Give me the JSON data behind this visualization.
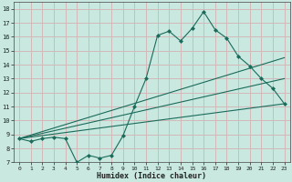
{
  "xlabel": "Humidex (Indice chaleur)",
  "xlim": [
    -0.5,
    23.5
  ],
  "ylim": [
    7,
    18.5
  ],
  "yticks": [
    7,
    8,
    9,
    10,
    11,
    12,
    13,
    14,
    15,
    16,
    17,
    18
  ],
  "xticks": [
    0,
    1,
    2,
    3,
    4,
    5,
    6,
    7,
    8,
    9,
    10,
    11,
    12,
    13,
    14,
    15,
    16,
    17,
    18,
    19,
    20,
    21,
    22,
    23
  ],
  "background_color": "#c8e8e0",
  "grid_color": "#d4b8b8",
  "line_color": "#1a6b5a",
  "lines": [
    {
      "x": [
        0,
        1,
        2,
        3,
        4,
        5,
        6,
        7,
        8,
        9,
        10,
        11,
        12,
        13,
        14,
        15,
        16,
        17,
        18,
        19,
        20,
        21,
        22,
        23
      ],
      "y": [
        8.7,
        8.5,
        8.7,
        8.8,
        8.7,
        7.0,
        7.5,
        7.3,
        7.5,
        8.9,
        11.0,
        13.0,
        16.1,
        16.4,
        15.7,
        16.6,
        17.8,
        16.5,
        15.9,
        14.6,
        13.9,
        13.0,
        12.3,
        11.2
      ]
    },
    {
      "x": [
        0,
        23
      ],
      "y": [
        8.7,
        14.5
      ]
    },
    {
      "x": [
        0,
        23
      ],
      "y": [
        8.7,
        13.0
      ]
    },
    {
      "x": [
        0,
        23
      ],
      "y": [
        8.7,
        11.2
      ]
    }
  ]
}
